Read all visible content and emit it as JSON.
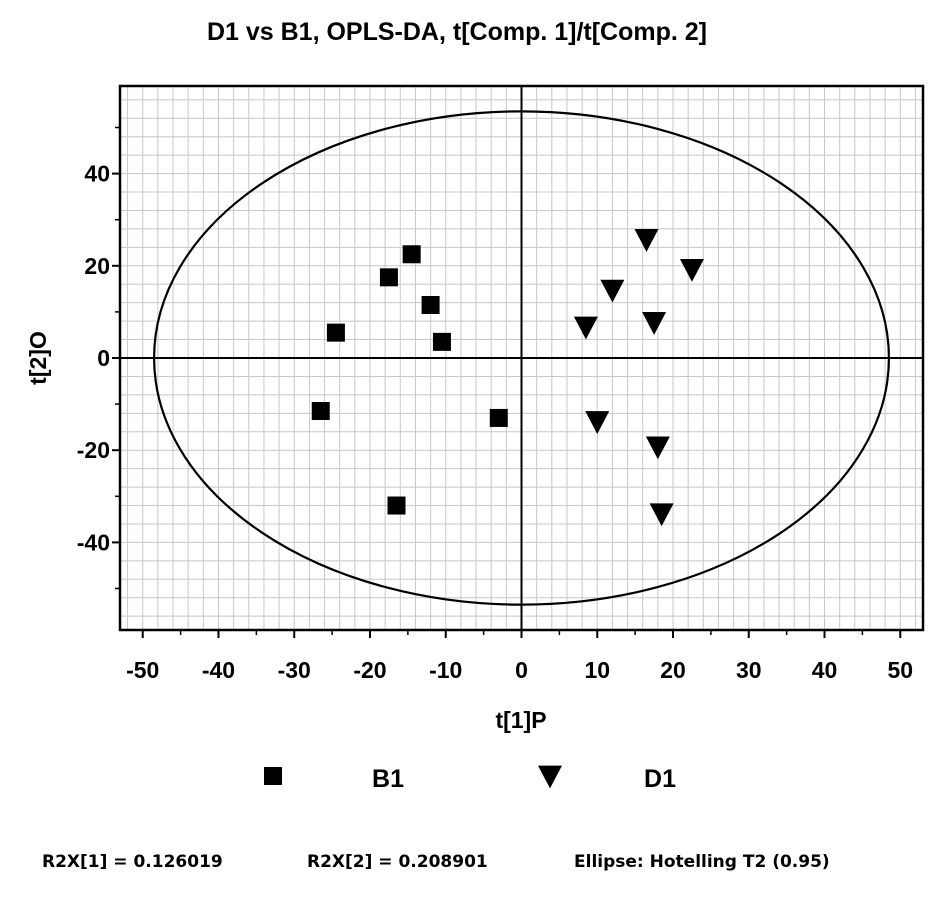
{
  "chart_data": {
    "type": "scatter",
    "title": "D1 vs B1, OPLS-DA, t[Comp. 1]/t[Comp. 2]",
    "xlabel": "t[1]P",
    "ylabel": "t[2]O",
    "xlim": [
      -53,
      53
    ],
    "ylim": [
      -59,
      59
    ],
    "x_ticks": [
      -50,
      -40,
      -30,
      -20,
      -10,
      0,
      10,
      20,
      30,
      40,
      50
    ],
    "y_ticks": [
      -40,
      -20,
      0,
      20,
      40
    ],
    "x_minor_step": 2,
    "y_minor_step": 4,
    "grid": true,
    "legend_position": "bottom",
    "ellipse": {
      "label": "Ellipse: Hotelling T2 (0.95)",
      "rx": 48.5,
      "ry": 53.5,
      "cx": 0,
      "cy": 0
    },
    "series": [
      {
        "name": "B1",
        "marker": "square",
        "color": "#000000",
        "points": [
          [
            -14.5,
            22.5
          ],
          [
            -17.5,
            17.5
          ],
          [
            -12,
            11.5
          ],
          [
            -24.5,
            5.5
          ],
          [
            -10.5,
            3.5
          ],
          [
            -26.5,
            -11.5
          ],
          [
            -3,
            -13
          ],
          [
            -16.5,
            -32
          ]
        ]
      },
      {
        "name": "D1",
        "marker": "triangle-down",
        "color": "#000000",
        "points": [
          [
            16.5,
            25.5
          ],
          [
            22.5,
            19
          ],
          [
            12,
            14.5
          ],
          [
            8.5,
            6.5
          ],
          [
            17.5,
            7.5
          ],
          [
            10,
            -14
          ],
          [
            18,
            -19.5
          ],
          [
            18.5,
            -34
          ]
        ]
      }
    ]
  },
  "footer": {
    "r2x1": "R2X[1] = 0.126019",
    "r2x2": "R2X[2] = 0.208901",
    "ellipse": "Ellipse: Hotelling T2 (0.95)"
  }
}
